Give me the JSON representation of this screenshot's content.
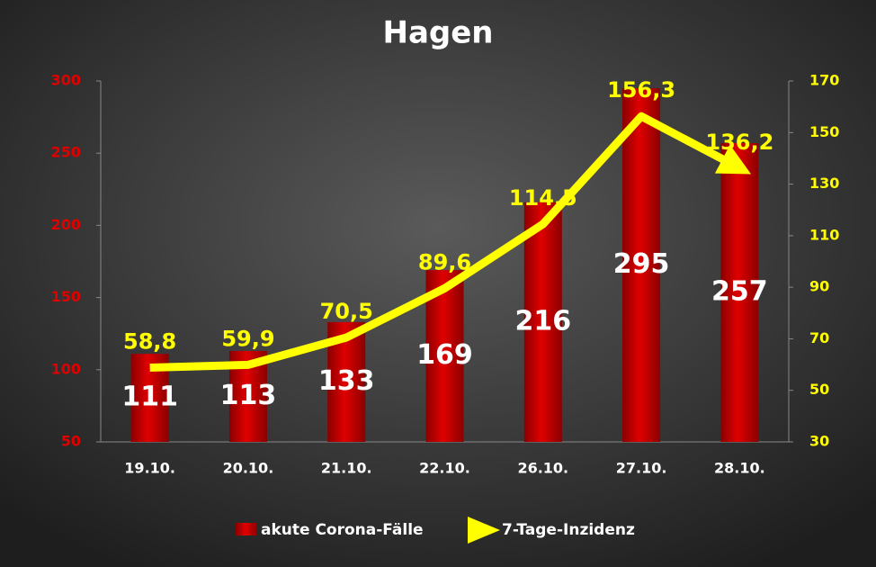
{
  "chart_data": {
    "type": "bar",
    "title": "Hagen",
    "categories": [
      "19.10.",
      "20.10.",
      "21.10.",
      "22.10.",
      "26.10.",
      "27.10.",
      "28.10."
    ],
    "series": [
      {
        "name": "akute Corona-Fälle",
        "color": "#cc0000",
        "values": [
          111,
          113,
          133,
          169,
          216,
          295,
          257
        ]
      },
      {
        "name": "7-Tage-Inzidenz",
        "type": "line",
        "axis": "y2",
        "color": "#ffff00",
        "values": [
          58.8,
          59.9,
          70.5,
          89.6,
          114.5,
          156.3,
          136.2
        ],
        "value_labels": [
          "58,8",
          "59,9",
          "70,5",
          "89,6",
          "114,5",
          "156,3",
          "136,2"
        ]
      }
    ],
    "ylim": [
      50,
      300
    ],
    "yticks": [
      50,
      100,
      150,
      200,
      250,
      300
    ],
    "y2lim": [
      30,
      170
    ],
    "y2ticks": [
      30,
      50,
      70,
      90,
      110,
      130,
      150,
      170
    ],
    "legend": "bottom"
  }
}
